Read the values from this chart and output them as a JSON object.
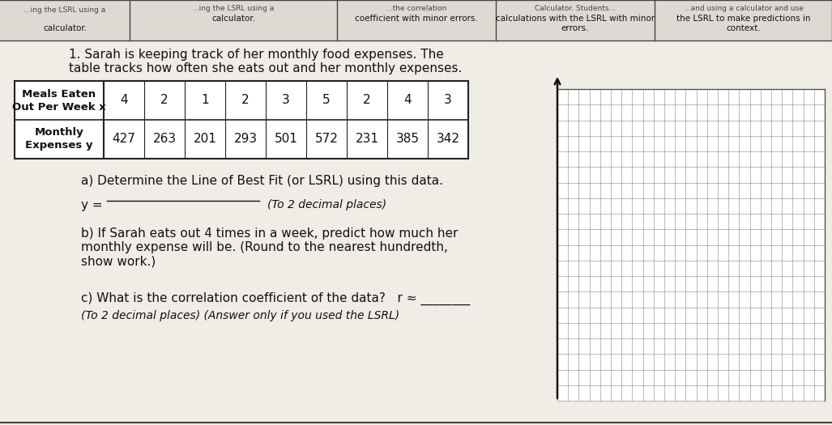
{
  "bg_color": "#e8e6e0",
  "header_row": {
    "col0_line1": "Meals Eaten",
    "col0_line2": "Out Per Week x",
    "values": [
      "4",
      "2",
      "1",
      "2",
      "3",
      "5",
      "2",
      "4",
      "3"
    ]
  },
  "data_row": {
    "col0_line1": "Monthly",
    "col0_line2": "Expenses y",
    "values": [
      "427",
      "263",
      "201",
      "293",
      "501",
      "572",
      "231",
      "385",
      "342"
    ]
  },
  "top_headers": [
    "calculator.",
    "coefficient with minor errors.",
    "calculations with the LSRL with minor\nerrors.",
    "the LSRL to make predictions in\ncontext."
  ],
  "top_partials": [
    "...ing the LSRL using a",
    "...the correlation",
    "Calculator. Students...",
    "...and using a calculator and use"
  ],
  "problem_line1": "1. Sarah is keeping track of her monthly food expenses. The",
  "problem_line2": "table tracks how often she eats out and her monthly expenses.",
  "part_a_text": "a) Determine the Line of Best Fit (or LSRL) using this data.",
  "part_b_text": "b) If Sarah eats out 4 times in a week, predict how much her\nmonthly expense will be. (Round to the nearest hundredth,\nshow work.)",
  "part_c_text": "c) What is the correlation coefficient of the data?   r ≈ ________",
  "part_c_italic": "(To 2 decimal places) (Answer only if you used the LSRL)",
  "grid_color": "#888888",
  "table_border_color": "#222222",
  "text_color": "#111111"
}
